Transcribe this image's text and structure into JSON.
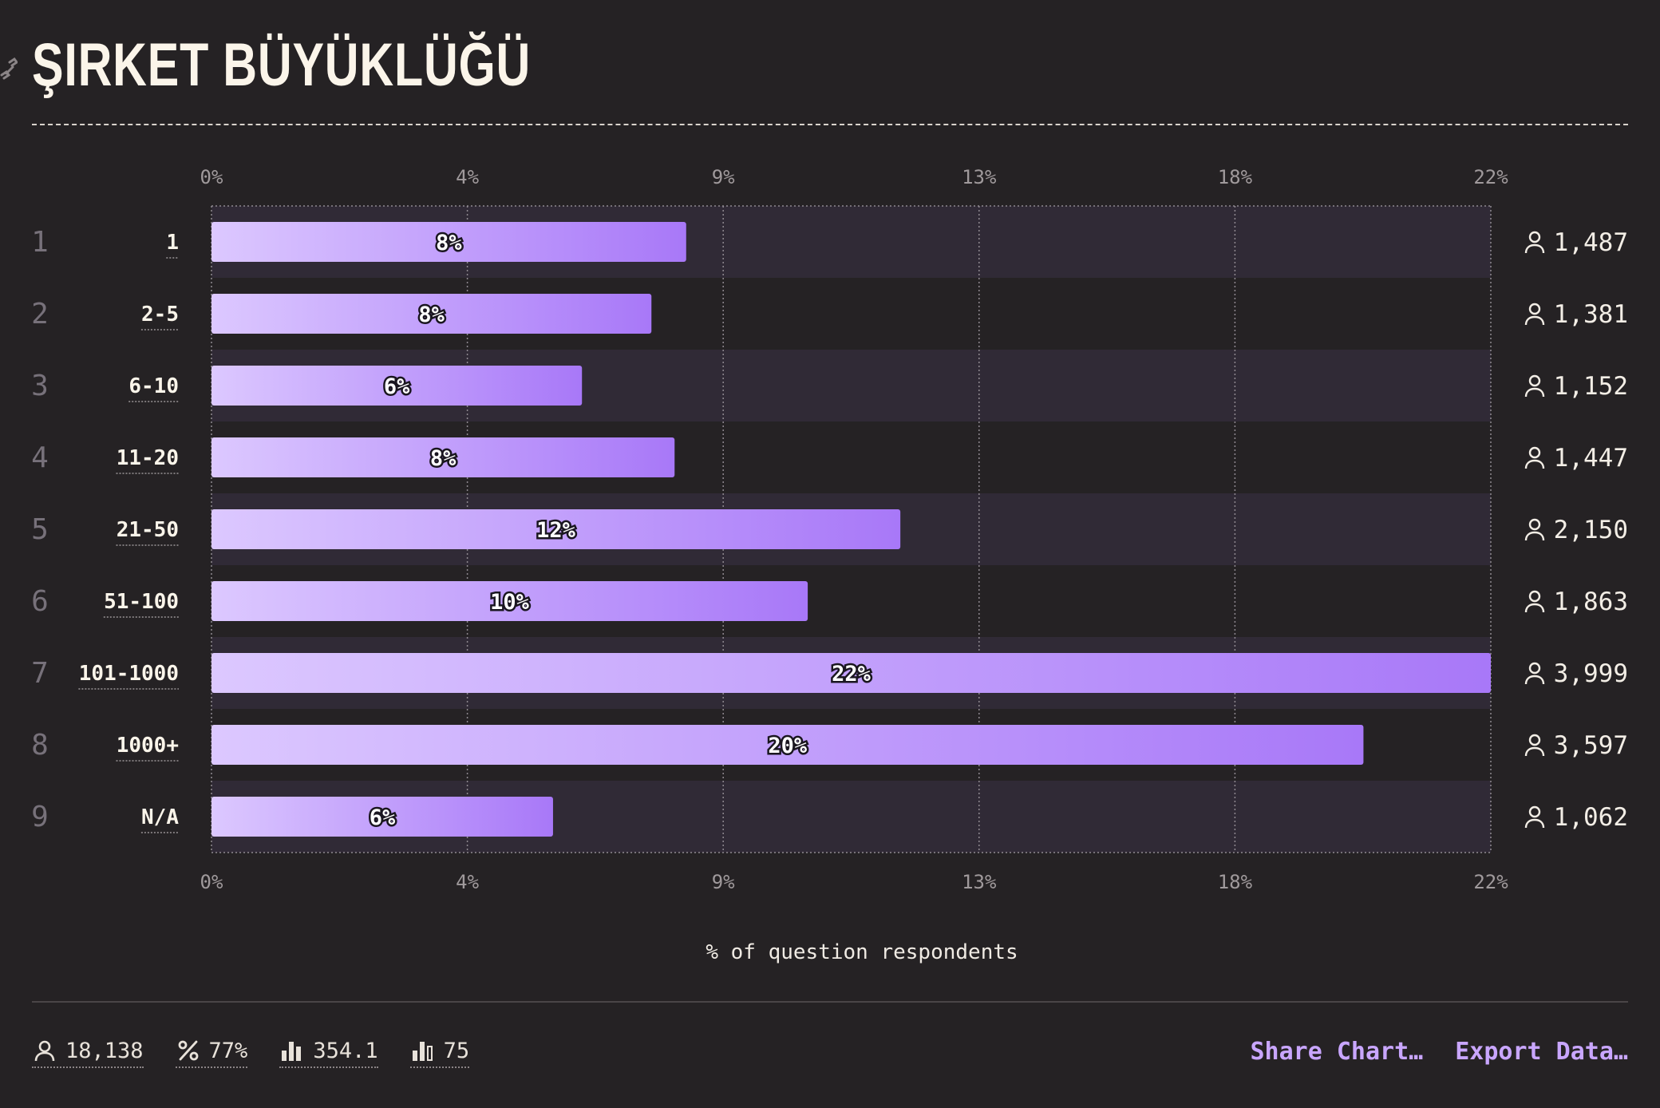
{
  "title": "ŞIRKET BÜYÜKLÜĞÜ",
  "chart_data": {
    "type": "bar",
    "orientation": "horizontal",
    "categories": [
      "1",
      "2-5",
      "6-10",
      "11-20",
      "21-50",
      "51-100",
      "101-1000",
      "1000+",
      "N/A"
    ],
    "ranks": [
      "1",
      "2",
      "3",
      "4",
      "5",
      "6",
      "7",
      "8",
      "9"
    ],
    "values": [
      8.2,
      7.6,
      6.4,
      8.0,
      11.9,
      10.3,
      22.1,
      19.9,
      5.9
    ],
    "value_labels": [
      "8%",
      "8%",
      "6%",
      "8%",
      "12%",
      "10%",
      "22%",
      "20%",
      "6%"
    ],
    "counts": [
      "1,487",
      "1,381",
      "1,152",
      "1,447",
      "2,150",
      "1,863",
      "3,999",
      "3,597",
      "1,062"
    ],
    "xlim": [
      0,
      22.1
    ],
    "ticks": [
      0,
      4.42,
      8.84,
      13.26,
      17.68,
      22.1
    ],
    "tick_labels": [
      "0%",
      "4%",
      "9%",
      "13%",
      "18%",
      "22%"
    ],
    "xlabel": "% of question respondents",
    "grid": true,
    "bar_gradient": [
      "#dcc8ff",
      "#a878f8"
    ]
  },
  "stats": {
    "respondents": "18,138",
    "percent": "77%",
    "average": "354.1",
    "median": "75"
  },
  "actions": {
    "share": "Share Chart…",
    "export": "Export Data…"
  }
}
